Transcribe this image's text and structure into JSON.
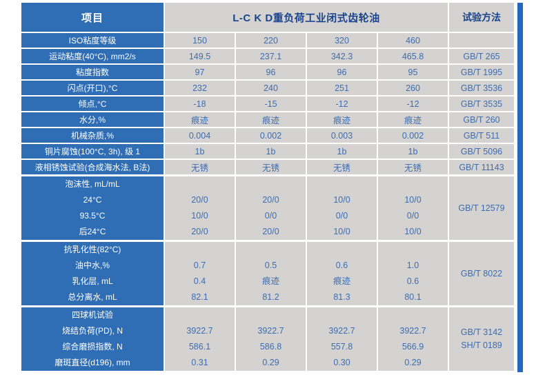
{
  "colors": {
    "label_blue": "#2f6db5",
    "cell_gray": "#d4d3d1",
    "value_text_blue": "#3e6cb0",
    "header_navy": "#1b448c",
    "accent_bar_blue": "#2168be"
  },
  "table": {
    "header": {
      "items_label": "项目",
      "product_title": "L-C K D重负荷工业闭式齿轮油",
      "method_label": "试验方法"
    },
    "rows": [
      {
        "label": "ISO粘度等级",
        "values": [
          "150",
          "220",
          "320",
          "460"
        ],
        "method": ""
      },
      {
        "label": "运动粘度(40°C), mm2/s",
        "values": [
          "149.5",
          "237.1",
          "342.3",
          "465.8"
        ],
        "method": "GB/T 265"
      },
      {
        "label": "粘度指数",
        "values": [
          "97",
          "96",
          "96",
          "95"
        ],
        "method": "GB/T 1995"
      },
      {
        "label": "闪点(开口),°C",
        "values": [
          "232",
          "240",
          "251",
          "260"
        ],
        "method": "GB/T 3536"
      },
      {
        "label": "倾点,°C",
        "values": [
          "-18",
          "-15",
          "-12",
          "-12"
        ],
        "method": "GB/T 3535"
      },
      {
        "label": "水分,%",
        "values": [
          "痕迹",
          "痕迹",
          "痕迹",
          "痕迹"
        ],
        "method": "GB/T 260"
      },
      {
        "label": "机械杂质,%",
        "values": [
          "0.004",
          "0.002",
          "0.003",
          "0.002"
        ],
        "method": "GB/T 511"
      },
      {
        "label": "铜片腐蚀(100°C, 3h), 级 1",
        "values": [
          "1b",
          "1b",
          "1b",
          "1b"
        ],
        "method": "GB/T 5096"
      },
      {
        "label": "液相锈蚀试验(合成海水法, B法)",
        "values": [
          "无锈",
          "无锈",
          "无锈",
          "无锈"
        ],
        "method": "GB/T 11143"
      }
    ],
    "sections": [
      {
        "title": "泡沫性, mL/mL",
        "sub_rows": [
          {
            "label": "24°C",
            "values": [
              "20/0",
              "20/0",
              "10/0",
              "10/0"
            ]
          },
          {
            "label": "93.5°C",
            "values": [
              "10/0",
              "0/0",
              "0/0",
              "0/0"
            ]
          },
          {
            "label": "后24°C",
            "values": [
              "20/0",
              "20/0",
              "10/0",
              "10/0"
            ]
          }
        ],
        "methods": [
          "GB/T 12579"
        ]
      },
      {
        "title": "抗乳化性(82°C)",
        "sub_rows": [
          {
            "label": "油中水,%",
            "values": [
              "0.7",
              "0.5",
              "0.6",
              "1.0"
            ]
          },
          {
            "label": "乳化层, mL",
            "values": [
              "0.4",
              "痕迹",
              "痕迹",
              "0.6"
            ]
          },
          {
            "label": "总分离水, mL",
            "values": [
              "82.1",
              "81.2",
              "81.3",
              "80.1"
            ]
          }
        ],
        "methods": [
          "GB/T 8022"
        ]
      },
      {
        "title": "四球机试验",
        "sub_rows": [
          {
            "label": "烧结负荷(PD), N",
            "values": [
              "3922.7",
              "3922.7",
              "3922.7",
              "3922.7"
            ]
          },
          {
            "label": "综合磨损指数, N",
            "values": [
              "586.1",
              "586.8",
              "557.8",
              "566.9"
            ]
          },
          {
            "label": "磨斑直径(d196), mm",
            "values": [
              "0.31",
              "0.29",
              "0.30",
              "0.29"
            ]
          }
        ],
        "methods": [
          "GB/T 3142",
          "SH/T 0189"
        ]
      }
    ]
  }
}
